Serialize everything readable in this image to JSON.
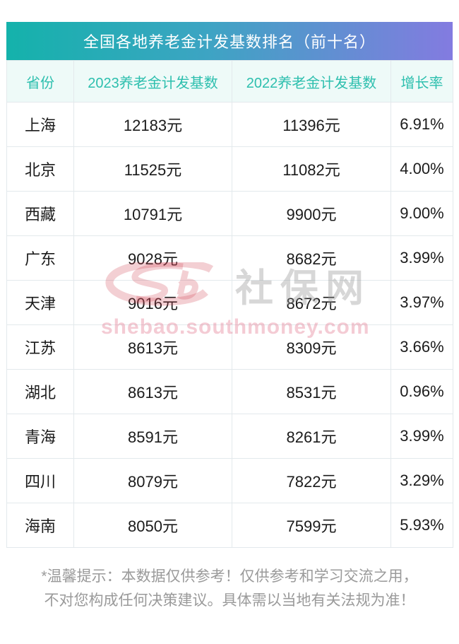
{
  "title": "全国各地养老金计发基数排名（前十名）",
  "chart_data": {
    "type": "table",
    "title": "全国各地养老金计发基数排名（前十名）",
    "columns": [
      "省份",
      "2023养老金计发基数",
      "2022养老金计发基数",
      "增长率"
    ],
    "rows": [
      [
        "上海",
        "12183元",
        "11396元",
        "6.91%"
      ],
      [
        "北京",
        "11525元",
        "11082元",
        "4.00%"
      ],
      [
        "西藏",
        "10791元",
        "9900元",
        "9.00%"
      ],
      [
        "广东",
        "9028元",
        "8682元",
        "3.99%"
      ],
      [
        "天津",
        "9016元",
        "8672元",
        "3.97%"
      ],
      [
        "江苏",
        "8613元",
        "8309元",
        "3.66%"
      ],
      [
        "湖北",
        "8613元",
        "8531元",
        "0.96%"
      ],
      [
        "青海",
        "8591元",
        "8261元",
        "3.99%"
      ],
      [
        "四川",
        "8079元",
        "7822元",
        "3.29%"
      ],
      [
        "海南",
        "8050元",
        "7599元",
        "5.93%"
      ]
    ]
  },
  "watermark": {
    "logo": "csb-swirl-logo",
    "site_name": "社保网",
    "url": "shebao.southmoney.com"
  },
  "footer": {
    "line1": "*温馨提示：本数据仅供参考！仅供参考和学习交流之用，",
    "line2": "不对您构成任何决策建议。具体需以当地有关法规为准！"
  },
  "colors": {
    "title_gradient_start": "#14b2ab",
    "title_gradient_end": "#837be0",
    "header_bg": "#eefaf8",
    "header_text": "#2dbfae",
    "cell_border": "#e3e9ec",
    "data_text": "#1b1b1b",
    "footer_text": "#9a9a9a",
    "watermark_pink": "#de5c78",
    "watermark_gray": "#969696"
  }
}
